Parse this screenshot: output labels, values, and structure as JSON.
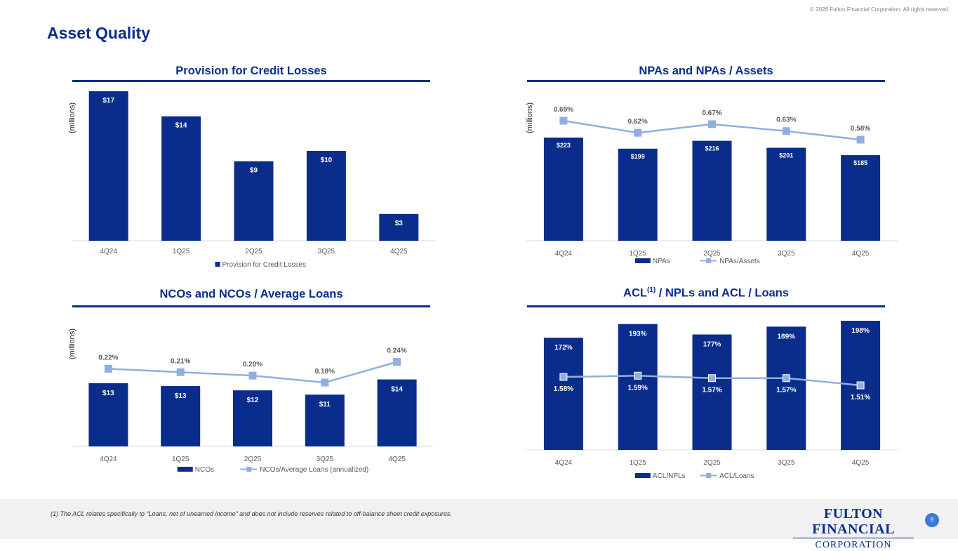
{
  "copyright": "© 2026 Fulton Financial Corporation.  All rights reserved.",
  "page_title": "Asset Quality",
  "footnote": "(1) The ACL relates specifically to “Loans, net of unearned income” and does not include reserves related to off-balance sheet credit exposures.",
  "logo": {
    "line1": "FULTON FINANCIAL",
    "line2": "CORPORATION"
  },
  "page_number": "9",
  "colors": {
    "bar": "#0a2d8c",
    "line": "#8fb0df",
    "title": "#0a2d8c"
  },
  "chart_data": [
    {
      "type": "bar",
      "title": "Provision for Credit Losses",
      "ylabel": "(millions)",
      "categories": [
        "4Q24",
        "1Q25",
        "2Q25",
        "3Q25",
        "4Q25"
      ],
      "series": [
        {
          "name": "Provision for Credit Losses",
          "values": [
            17.3,
            14.4,
            9.2,
            10.4,
            3.1
          ],
          "labels": [
            "$17",
            "$14",
            "$9",
            "$10",
            "$3"
          ]
        }
      ],
      "ylim": [
        0,
        18
      ],
      "legend": "bottom"
    },
    {
      "type": "bar+line",
      "title": "NPAs and NPAs / Assets",
      "ylabel": "(millions)",
      "categories": [
        "4Q24",
        "1Q25",
        "2Q25",
        "3Q25",
        "4Q25"
      ],
      "bar_series": {
        "name": "NPAs",
        "values": [
          223,
          199,
          216,
          201,
          185
        ],
        "labels": [
          "$223",
          "$199",
          "$216",
          "$201",
          "$185"
        ]
      },
      "line_series": {
        "name": "NPAs/Assets",
        "values": [
          0.69,
          0.62,
          0.67,
          0.63,
          0.58
        ],
        "labels": [
          "0.69%",
          "0.62%",
          "0.67%",
          "0.63%",
          "0.58%"
        ]
      },
      "ylim": [
        0,
        230
      ],
      "line_ylim": [
        0,
        0.8
      ],
      "legend": "bottom"
    },
    {
      "type": "bar+line",
      "title": "NCOs and NCOs / Average Loans",
      "ylabel": "(millions)",
      "categories": [
        "4Q24",
        "1Q25",
        "2Q25",
        "3Q25",
        "4Q25"
      ],
      "bar_series": {
        "name": "NCOs",
        "values": [
          13.3,
          12.7,
          11.8,
          10.9,
          14.1
        ],
        "labels": [
          "$13",
          "$13",
          "$12",
          "$11",
          "$14"
        ]
      },
      "line_series": {
        "name": "NCOs/Average Loans (annualized)",
        "values": [
          0.22,
          0.21,
          0.2,
          0.18,
          0.24
        ],
        "labels": [
          "0.22%",
          "0.21%",
          "0.20%",
          "0.18%",
          "0.24%"
        ]
      },
      "ylim": [
        0,
        30
      ],
      "line_ylim": [
        0,
        0.3
      ],
      "legend": "bottom"
    },
    {
      "type": "bar+line",
      "title_main": "ACL",
      "title_sup": "(1)",
      "title_rest": " / NPLs and ACL / Loans",
      "categories": [
        "4Q24",
        "1Q25",
        "2Q25",
        "3Q25",
        "4Q25"
      ],
      "bar_series": {
        "name": "ACL/NPLs",
        "values": [
          172,
          193,
          177,
          189,
          198
        ],
        "labels": [
          "172%",
          "193%",
          "177%",
          "189%",
          "198%"
        ]
      },
      "line_series": {
        "name": "ACL/Loans",
        "values": [
          1.58,
          1.59,
          1.57,
          1.57,
          1.51
        ],
        "labels": [
          "1.58%",
          "1.59%",
          "1.57%",
          "1.57%",
          "1.51%"
        ]
      },
      "ylim": [
        0,
        200
      ],
      "line_ylim": [
        0,
        2.8
      ],
      "legend": "bottom"
    }
  ]
}
